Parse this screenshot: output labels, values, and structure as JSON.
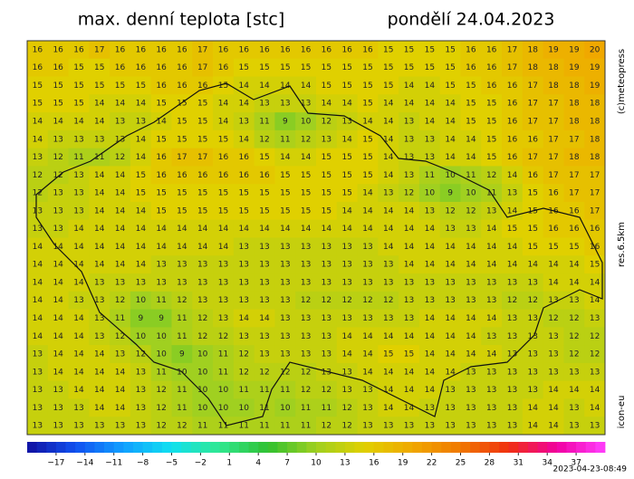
{
  "header": {
    "title": "max. denní teplota [stc]",
    "date": "pondělí 24.04.2023"
  },
  "side_labels": {
    "copyright": "(c)meteopress",
    "resolution": "res.6.5km",
    "model": "icon-eu"
  },
  "timestamp": "2023-04-23-08:49",
  "map": {
    "grid": [
      [
        16,
        16,
        16,
        17,
        16,
        16,
        16,
        16,
        17,
        16,
        16,
        16,
        16,
        16,
        16,
        16,
        16,
        15,
        15,
        15,
        15,
        16,
        16,
        17,
        18,
        19,
        19,
        20
      ],
      [
        16,
        16,
        15,
        15,
        16,
        16,
        16,
        16,
        17,
        16,
        15,
        15,
        15,
        15,
        15,
        15,
        15,
        15,
        15,
        15,
        15,
        16,
        16,
        17,
        18,
        18,
        19,
        19
      ],
      [
        15,
        15,
        15,
        15,
        15,
        15,
        16,
        16,
        16,
        15,
        14,
        14,
        14,
        14,
        15,
        15,
        15,
        15,
        14,
        14,
        15,
        15,
        16,
        16,
        17,
        18,
        18,
        19
      ],
      [
        15,
        15,
        15,
        14,
        14,
        14,
        15,
        15,
        15,
        14,
        14,
        13,
        13,
        13,
        14,
        14,
        15,
        14,
        14,
        14,
        14,
        15,
        15,
        16,
        17,
        17,
        18,
        18
      ],
      [
        14,
        14,
        14,
        14,
        13,
        13,
        14,
        15,
        15,
        14,
        13,
        11,
        9,
        10,
        12,
        13,
        14,
        14,
        13,
        14,
        14,
        15,
        15,
        16,
        17,
        17,
        18,
        18
      ],
      [
        14,
        13,
        13,
        13,
        13,
        14,
        15,
        15,
        15,
        15,
        14,
        12,
        11,
        12,
        13,
        14,
        15,
        14,
        13,
        13,
        14,
        14,
        15,
        16,
        16,
        17,
        17,
        18
      ],
      [
        13,
        12,
        11,
        11,
        12,
        14,
        16,
        17,
        17,
        16,
        16,
        15,
        14,
        14,
        15,
        15,
        15,
        14,
        13,
        13,
        14,
        14,
        15,
        16,
        17,
        17,
        18,
        18
      ],
      [
        12,
        12,
        13,
        14,
        14,
        15,
        16,
        16,
        16,
        16,
        16,
        16,
        15,
        15,
        15,
        15,
        15,
        14,
        13,
        11,
        10,
        11,
        12,
        14,
        16,
        17,
        17,
        17
      ],
      [
        12,
        13,
        13,
        14,
        14,
        15,
        15,
        15,
        15,
        15,
        15,
        15,
        15,
        15,
        15,
        15,
        14,
        13,
        12,
        10,
        9,
        10,
        11,
        13,
        15,
        16,
        17,
        17
      ],
      [
        13,
        13,
        13,
        14,
        14,
        14,
        15,
        15,
        15,
        15,
        15,
        15,
        15,
        15,
        15,
        14,
        14,
        14,
        14,
        13,
        12,
        12,
        13,
        14,
        15,
        16,
        16,
        17
      ],
      [
        13,
        13,
        14,
        14,
        14,
        14,
        14,
        14,
        14,
        14,
        14,
        14,
        14,
        14,
        14,
        14,
        14,
        14,
        14,
        14,
        13,
        13,
        14,
        15,
        15,
        16,
        16,
        16
      ],
      [
        14,
        14,
        14,
        14,
        14,
        14,
        14,
        14,
        14,
        14,
        13,
        13,
        13,
        13,
        13,
        13,
        13,
        14,
        14,
        14,
        14,
        14,
        14,
        14,
        15,
        15,
        15,
        16
      ],
      [
        14,
        14,
        14,
        14,
        14,
        14,
        13,
        13,
        13,
        13,
        13,
        13,
        13,
        13,
        13,
        13,
        13,
        13,
        14,
        14,
        14,
        14,
        14,
        14,
        14,
        14,
        14,
        15
      ],
      [
        14,
        14,
        14,
        13,
        13,
        13,
        13,
        13,
        13,
        13,
        13,
        13,
        13,
        13,
        13,
        13,
        13,
        13,
        13,
        13,
        13,
        13,
        13,
        13,
        13,
        14,
        14,
        14
      ],
      [
        14,
        14,
        13,
        13,
        12,
        10,
        11,
        12,
        13,
        13,
        13,
        13,
        13,
        12,
        12,
        12,
        12,
        12,
        13,
        13,
        13,
        13,
        13,
        12,
        12,
        13,
        13,
        14
      ],
      [
        14,
        14,
        14,
        13,
        11,
        9,
        9,
        11,
        12,
        13,
        14,
        14,
        13,
        13,
        13,
        13,
        13,
        13,
        13,
        14,
        14,
        14,
        14,
        13,
        13,
        12,
        12,
        13
      ],
      [
        14,
        14,
        14,
        13,
        12,
        10,
        10,
        11,
        12,
        12,
        13,
        13,
        13,
        13,
        13,
        14,
        14,
        14,
        14,
        14,
        14,
        14,
        13,
        13,
        13,
        13,
        12,
        12
      ],
      [
        13,
        14,
        14,
        14,
        13,
        12,
        10,
        9,
        10,
        11,
        12,
        13,
        13,
        13,
        13,
        14,
        14,
        15,
        15,
        14,
        14,
        14,
        14,
        13,
        13,
        13,
        12,
        12
      ],
      [
        13,
        14,
        14,
        14,
        14,
        13,
        11,
        10,
        10,
        11,
        12,
        12,
        12,
        12,
        13,
        13,
        14,
        14,
        14,
        14,
        14,
        13,
        13,
        13,
        13,
        13,
        13,
        13
      ],
      [
        13,
        13,
        14,
        14,
        14,
        13,
        12,
        11,
        10,
        10,
        11,
        11,
        11,
        12,
        12,
        13,
        13,
        14,
        14,
        14,
        13,
        13,
        13,
        13,
        13,
        14,
        14,
        14
      ],
      [
        13,
        13,
        13,
        14,
        14,
        13,
        12,
        11,
        10,
        10,
        10,
        11,
        10,
        11,
        11,
        12,
        13,
        14,
        14,
        13,
        13,
        13,
        13,
        13,
        14,
        14,
        13,
        14
      ],
      [
        13,
        13,
        13,
        13,
        13,
        13,
        12,
        12,
        11,
        11,
        11,
        11,
        11,
        11,
        12,
        12,
        13,
        13,
        13,
        13,
        13,
        13,
        13,
        13,
        14,
        14,
        13,
        13
      ]
    ]
  },
  "colorbar": {
    "range": [
      -20,
      40
    ],
    "colors": [
      "#1010a0",
      "#1050f0",
      "#10a0ff",
      "#10e0f0",
      "#30e890",
      "#30c030",
      "#a0d020",
      "#e0d000",
      "#f0a800",
      "#f07800",
      "#f03010",
      "#f000a0",
      "#ff40ff"
    ],
    "ticks": [
      {
        "value": -17,
        "label": "−17"
      },
      {
        "value": -14,
        "label": "−14"
      },
      {
        "value": -11,
        "label": "−11"
      },
      {
        "value": -8,
        "label": "−8"
      },
      {
        "value": -5,
        "label": "−5"
      },
      {
        "value": -2,
        "label": "−2"
      },
      1,
      4,
      7,
      10,
      13,
      16,
      19,
      22,
      25,
      28,
      31,
      34,
      37
    ]
  }
}
